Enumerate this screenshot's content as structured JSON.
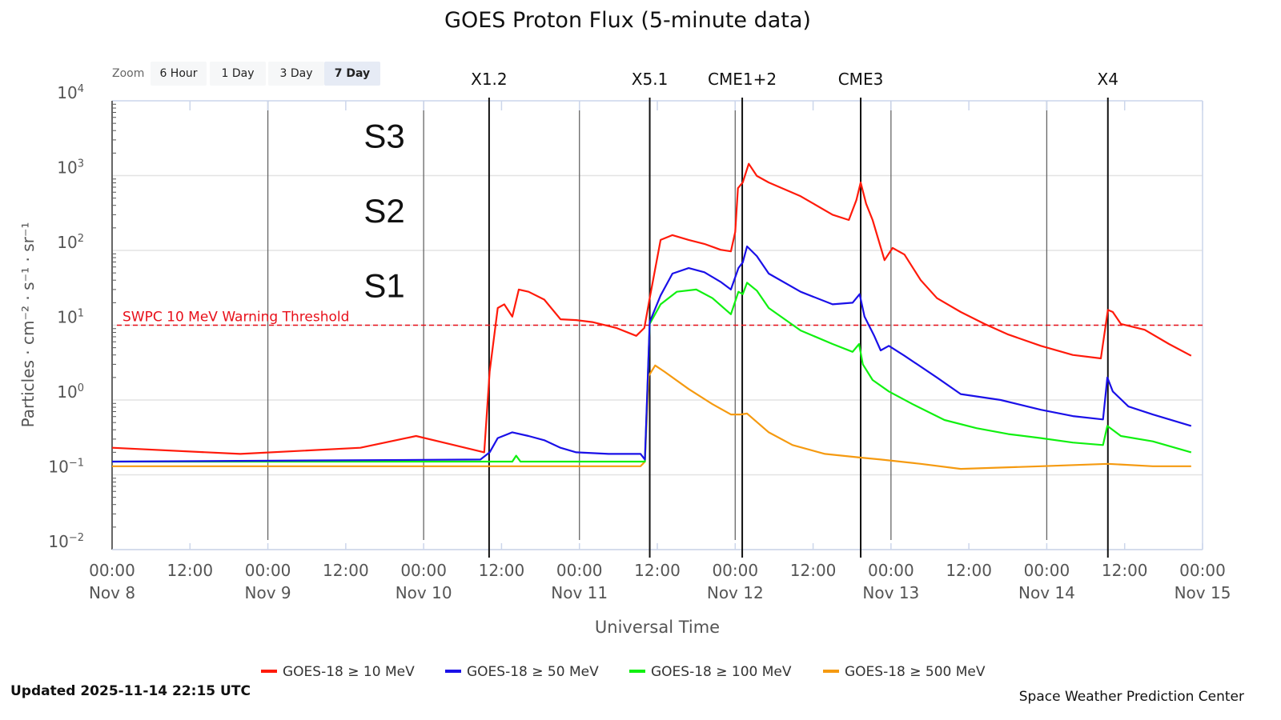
{
  "chart_data": {
    "type": "line",
    "title": "GOES Proton Flux (5-minute data)",
    "xlabel": "Universal Time",
    "ylabel": "Particles · cm⁻² · s⁻¹ · sr⁻¹",
    "yscale": "log",
    "ylim": [
      0.01,
      10000
    ],
    "xlim": [
      "2025-11-08T00:00",
      "2025-11-15T00:00"
    ],
    "grid": true,
    "legend_position": "bottom",
    "y_ticks": [
      {
        "base": "10",
        "exp": "4",
        "value": 10000
      },
      {
        "base": "10",
        "exp": "3",
        "value": 1000
      },
      {
        "base": "10",
        "exp": "2",
        "value": 100
      },
      {
        "base": "10",
        "exp": "1",
        "value": 10
      },
      {
        "base": "10",
        "exp": "0",
        "value": 1
      },
      {
        "base": "10",
        "exp": "−1",
        "value": 0.1
      },
      {
        "base": "10",
        "exp": "−2",
        "value": 0.01
      }
    ],
    "x_ticks": [
      {
        "time": "2025-11-08T00:00",
        "line1": "00:00",
        "line2": "Nov 8"
      },
      {
        "time": "2025-11-08T12:00",
        "line1": "12:00",
        "line2": ""
      },
      {
        "time": "2025-11-09T00:00",
        "line1": "00:00",
        "line2": "Nov 9"
      },
      {
        "time": "2025-11-09T12:00",
        "line1": "12:00",
        "line2": ""
      },
      {
        "time": "2025-11-10T00:00",
        "line1": "00:00",
        "line2": "Nov 10"
      },
      {
        "time": "2025-11-10T12:00",
        "line1": "12:00",
        "line2": ""
      },
      {
        "time": "2025-11-11T00:00",
        "line1": "00:00",
        "line2": "Nov 11"
      },
      {
        "time": "2025-11-11T12:00",
        "line1": "12:00",
        "line2": ""
      },
      {
        "time": "2025-11-12T00:00",
        "line1": "00:00",
        "line2": "Nov 12"
      },
      {
        "time": "2025-11-12T12:00",
        "line1": "12:00",
        "line2": ""
      },
      {
        "time": "2025-11-13T00:00",
        "line1": "00:00",
        "line2": "Nov 13"
      },
      {
        "time": "2025-11-13T12:00",
        "line1": "12:00",
        "line2": ""
      },
      {
        "time": "2025-11-14T00:00",
        "line1": "00:00",
        "line2": "Nov 14"
      },
      {
        "time": "2025-11-14T12:00",
        "line1": "12:00",
        "line2": ""
      },
      {
        "time": "2025-11-15T00:00",
        "line1": "00:00",
        "line2": "Nov 15"
      }
    ],
    "threshold": {
      "label": "SWPC 10 MeV Warning Threshold",
      "value": 10,
      "color": "#e8101a"
    },
    "storm_levels": [
      {
        "label": "S3",
        "value": 1000
      },
      {
        "label": "S2",
        "value": 100
      },
      {
        "label": "S1",
        "value": 10
      }
    ],
    "events": [
      {
        "label": "X1.2",
        "time": "2025-11-10T10:05"
      },
      {
        "label": "X5.1",
        "time": "2025-11-11T10:50"
      },
      {
        "label": "CME1+2",
        "time": "2025-11-12T01:05"
      },
      {
        "label": "CME3",
        "time": "2025-11-12T19:20"
      },
      {
        "label": "X4",
        "time": "2025-11-14T09:25"
      }
    ],
    "series": [
      {
        "name": "GOES-18 ≥ 10 MeV",
        "color": "#ff1a0a",
        "points": [
          [
            "2025-11-08T00:00",
            0.23
          ],
          [
            "2025-11-08T19:45",
            0.19
          ],
          [
            "2025-11-09T14:15",
            0.23
          ],
          [
            "2025-11-09T22:50",
            0.33
          ],
          [
            "2025-11-10T03:50",
            0.26
          ],
          [
            "2025-11-10T09:20",
            0.2
          ],
          [
            "2025-11-10T10:10",
            2.4
          ],
          [
            "2025-11-10T11:25",
            17
          ],
          [
            "2025-11-10T12:25",
            19
          ],
          [
            "2025-11-10T13:40",
            13
          ],
          [
            "2025-11-10T14:40",
            30
          ],
          [
            "2025-11-10T16:10",
            28
          ],
          [
            "2025-11-10T18:35",
            22
          ],
          [
            "2025-11-10T21:05",
            12
          ],
          [
            "2025-11-10T23:30",
            11.7
          ],
          [
            "2025-11-11T02:00",
            11
          ],
          [
            "2025-11-11T05:40",
            9.2
          ],
          [
            "2025-11-11T08:45",
            7.2
          ],
          [
            "2025-11-11T10:00",
            9.2
          ],
          [
            "2025-11-11T10:50",
            23
          ],
          [
            "2025-11-11T12:30",
            138
          ],
          [
            "2025-11-11T14:20",
            160
          ],
          [
            "2025-11-11T16:50",
            138
          ],
          [
            "2025-11-11T19:15",
            122
          ],
          [
            "2025-11-11T21:45",
            102
          ],
          [
            "2025-11-11T23:20",
            97
          ],
          [
            "2025-11-12T00:00",
            176
          ],
          [
            "2025-11-12T00:25",
            680
          ],
          [
            "2025-11-12T01:10",
            810
          ],
          [
            "2025-11-12T02:05",
            1440
          ],
          [
            "2025-11-12T03:20",
            990
          ],
          [
            "2025-11-12T05:10",
            810
          ],
          [
            "2025-11-12T10:05",
            530
          ],
          [
            "2025-11-12T15:00",
            300
          ],
          [
            "2025-11-12T17:30",
            255
          ],
          [
            "2025-11-12T18:40",
            470
          ],
          [
            "2025-11-12T19:20",
            810
          ],
          [
            "2025-11-12T20:10",
            420
          ],
          [
            "2025-11-12T21:10",
            255
          ],
          [
            "2025-11-12T23:00",
            74
          ],
          [
            "2025-11-13T00:15",
            108
          ],
          [
            "2025-11-13T02:05",
            88
          ],
          [
            "2025-11-13T04:35",
            40
          ],
          [
            "2025-11-13T07:05",
            23
          ],
          [
            "2025-11-13T10:45",
            15
          ],
          [
            "2025-11-13T14:25",
            10.4
          ],
          [
            "2025-11-13T18:05",
            7.5
          ],
          [
            "2025-11-13T23:05",
            5.3
          ],
          [
            "2025-11-14T04:00",
            4.0
          ],
          [
            "2025-11-14T08:20",
            3.6
          ],
          [
            "2025-11-14T09:25",
            16
          ],
          [
            "2025-11-14T10:10",
            15
          ],
          [
            "2025-11-14T11:25",
            10.4
          ],
          [
            "2025-11-14T15:05",
            8.7
          ],
          [
            "2025-11-14T18:50",
            5.6
          ],
          [
            "2025-11-14T22:15",
            3.9
          ]
        ]
      },
      {
        "name": "GOES-18 ≥ 50 MeV",
        "color": "#1a10e8",
        "points": [
          [
            "2025-11-08T00:00",
            0.15
          ],
          [
            "2025-11-10T08:45",
            0.16
          ],
          [
            "2025-11-10T10:10",
            0.2
          ],
          [
            "2025-11-10T11:25",
            0.31
          ],
          [
            "2025-11-10T13:40",
            0.37
          ],
          [
            "2025-11-10T16:10",
            0.33
          ],
          [
            "2025-11-10T18:35",
            0.29
          ],
          [
            "2025-11-10T21:05",
            0.23
          ],
          [
            "2025-11-10T23:30",
            0.2
          ],
          [
            "2025-11-11T04:30",
            0.19
          ],
          [
            "2025-11-11T09:25",
            0.19
          ],
          [
            "2025-11-11T10:05",
            0.16
          ],
          [
            "2025-11-11T10:50",
            11
          ],
          [
            "2025-11-11T12:30",
            25
          ],
          [
            "2025-11-11T14:20",
            49
          ],
          [
            "2025-11-11T16:50",
            58
          ],
          [
            "2025-11-11T19:15",
            51
          ],
          [
            "2025-11-11T21:45",
            38
          ],
          [
            "2025-11-11T23:20",
            30
          ],
          [
            "2025-11-12T00:30",
            58
          ],
          [
            "2025-11-12T01:10",
            69
          ],
          [
            "2025-11-12T01:50",
            113
          ],
          [
            "2025-11-12T03:20",
            84
          ],
          [
            "2025-11-12T05:10",
            49
          ],
          [
            "2025-11-12T10:05",
            28
          ],
          [
            "2025-11-12T15:00",
            19
          ],
          [
            "2025-11-12T18:05",
            20
          ],
          [
            "2025-11-12T19:10",
            26
          ],
          [
            "2025-11-12T19:55",
            13
          ],
          [
            "2025-11-12T21:25",
            7.2
          ],
          [
            "2025-11-12T22:25",
            4.6
          ],
          [
            "2025-11-12T23:40",
            5.3
          ],
          [
            "2025-11-13T02:05",
            3.9
          ],
          [
            "2025-11-13T07:05",
            2.0
          ],
          [
            "2025-11-13T10:45",
            1.2
          ],
          [
            "2025-11-13T16:55",
            1.0
          ],
          [
            "2025-11-13T23:05",
            0.74
          ],
          [
            "2025-11-14T04:00",
            0.61
          ],
          [
            "2025-11-14T08:40",
            0.55
          ],
          [
            "2025-11-14T09:20",
            2.0
          ],
          [
            "2025-11-14T10:10",
            1.3
          ],
          [
            "2025-11-14T12:35",
            0.82
          ],
          [
            "2025-11-14T16:20",
            0.64
          ],
          [
            "2025-11-14T22:15",
            0.45
          ]
        ]
      },
      {
        "name": "GOES-18 ≥ 100 MeV",
        "color": "#10f010",
        "points": [
          [
            "2025-11-08T00:00",
            0.15
          ],
          [
            "2025-11-10T13:40",
            0.15
          ],
          [
            "2025-11-10T14:15",
            0.18
          ],
          [
            "2025-11-10T14:55",
            0.15
          ],
          [
            "2025-11-11T09:25",
            0.15
          ],
          [
            "2025-11-11T10:05",
            0.15
          ],
          [
            "2025-11-11T10:50",
            10.4
          ],
          [
            "2025-11-11T12:30",
            19
          ],
          [
            "2025-11-11T15:00",
            28
          ],
          [
            "2025-11-11T18:00",
            30
          ],
          [
            "2025-11-11T20:30",
            23
          ],
          [
            "2025-11-11T23:20",
            14
          ],
          [
            "2025-11-12T00:30",
            28
          ],
          [
            "2025-11-12T01:10",
            26
          ],
          [
            "2025-11-12T01:50",
            37
          ],
          [
            "2025-11-12T03:20",
            29
          ],
          [
            "2025-11-12T05:10",
            17
          ],
          [
            "2025-11-12T10:05",
            8.5
          ],
          [
            "2025-11-12T15:00",
            5.6
          ],
          [
            "2025-11-12T18:05",
            4.4
          ],
          [
            "2025-11-12T19:05",
            5.6
          ],
          [
            "2025-11-12T19:40",
            3.0
          ],
          [
            "2025-11-12T21:10",
            1.85
          ],
          [
            "2025-11-12T23:40",
            1.3
          ],
          [
            "2025-11-13T03:20",
            0.88
          ],
          [
            "2025-11-13T08:15",
            0.54
          ],
          [
            "2025-11-13T13:10",
            0.42
          ],
          [
            "2025-11-13T18:05",
            0.35
          ],
          [
            "2025-11-13T23:05",
            0.31
          ],
          [
            "2025-11-14T04:00",
            0.27
          ],
          [
            "2025-11-14T08:40",
            0.25
          ],
          [
            "2025-11-14T09:20",
            0.45
          ],
          [
            "2025-11-14T11:25",
            0.33
          ],
          [
            "2025-11-14T16:20",
            0.28
          ],
          [
            "2025-11-14T22:15",
            0.2
          ]
        ]
      },
      {
        "name": "GOES-18 ≥ 500 MeV",
        "color": "#f59a10",
        "points": [
          [
            "2025-11-08T00:00",
            0.13
          ],
          [
            "2025-11-11T09:25",
            0.13
          ],
          [
            "2025-11-11T10:05",
            0.15
          ],
          [
            "2025-11-11T10:40",
            2.1
          ],
          [
            "2025-11-11T11:40",
            2.9
          ],
          [
            "2025-11-11T13:05",
            2.4
          ],
          [
            "2025-11-11T16:50",
            1.4
          ],
          [
            "2025-11-11T20:30",
            0.88
          ],
          [
            "2025-11-11T23:20",
            0.64
          ],
          [
            "2025-11-12T00:50",
            0.64
          ],
          [
            "2025-11-12T01:50",
            0.66
          ],
          [
            "2025-11-12T05:10",
            0.37
          ],
          [
            "2025-11-12T08:50",
            0.25
          ],
          [
            "2025-11-12T13:50",
            0.19
          ],
          [
            "2025-11-12T19:20",
            0.17
          ],
          [
            "2025-11-12T22:25",
            0.16
          ],
          [
            "2025-11-13T04:35",
            0.14
          ],
          [
            "2025-11-13T10:45",
            0.12
          ],
          [
            "2025-11-13T23:05",
            0.13
          ],
          [
            "2025-11-14T09:25",
            0.14
          ],
          [
            "2025-11-14T16:20",
            0.13
          ],
          [
            "2025-11-14T22:15",
            0.13
          ]
        ]
      }
    ]
  },
  "zoom": {
    "label": "Zoom",
    "buttons": [
      {
        "label": "6 Hour",
        "selected": false
      },
      {
        "label": "1 Day",
        "selected": false
      },
      {
        "label": "3 Day",
        "selected": false
      },
      {
        "label": "7 Day",
        "selected": true
      }
    ]
  },
  "footer": {
    "updated": "Updated 2025-11-14 22:15 UTC",
    "credit": "Space Weather Prediction Center"
  }
}
